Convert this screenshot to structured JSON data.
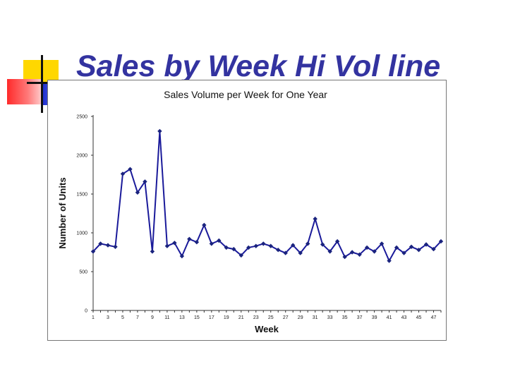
{
  "slide": {
    "title": "Sales by Week Hi Vol line"
  },
  "colors": {
    "title": "#3333a0",
    "series": "#1a1a9a",
    "marker": "#1a237e",
    "accent_yellow": "#ffd700",
    "accent_red": "#ff2a2a",
    "accent_blue": "#1f2fd0"
  },
  "chart_data": {
    "type": "line",
    "title": "Sales Volume per Week for One Year",
    "xlabel": "Week",
    "ylabel": "Number of Units",
    "ylim": [
      0,
      2500
    ],
    "yticks": [
      0,
      500,
      1000,
      1500,
      2000,
      2500
    ],
    "xlim": [
      1,
      48
    ],
    "xticks": [
      1,
      3,
      5,
      7,
      9,
      11,
      13,
      15,
      17,
      19,
      21,
      23,
      25,
      27,
      29,
      31,
      33,
      35,
      37,
      39,
      41,
      43,
      45,
      47
    ],
    "grid": false,
    "legend": "none",
    "x": [
      1,
      2,
      3,
      4,
      5,
      6,
      7,
      8,
      9,
      10,
      11,
      12,
      13,
      14,
      15,
      16,
      17,
      18,
      19,
      20,
      21,
      22,
      23,
      24,
      25,
      26,
      27,
      28,
      29,
      30,
      31,
      32,
      33,
      34,
      35,
      36,
      37,
      38,
      39,
      40,
      41,
      42,
      43,
      44,
      45,
      46,
      47,
      48
    ],
    "series": [
      {
        "values": [
          760,
          860,
          840,
          820,
          1760,
          1820,
          1520,
          1660,
          760,
          2310,
          830,
          870,
          700,
          920,
          880,
          1100,
          860,
          900,
          810,
          790,
          710,
          810,
          830,
          860,
          830,
          780,
          740,
          840,
          740,
          860,
          1180,
          850,
          760,
          890,
          690,
          750,
          720,
          810,
          760,
          860,
          640,
          810,
          740,
          820,
          780,
          850,
          790,
          890
        ]
      }
    ]
  }
}
